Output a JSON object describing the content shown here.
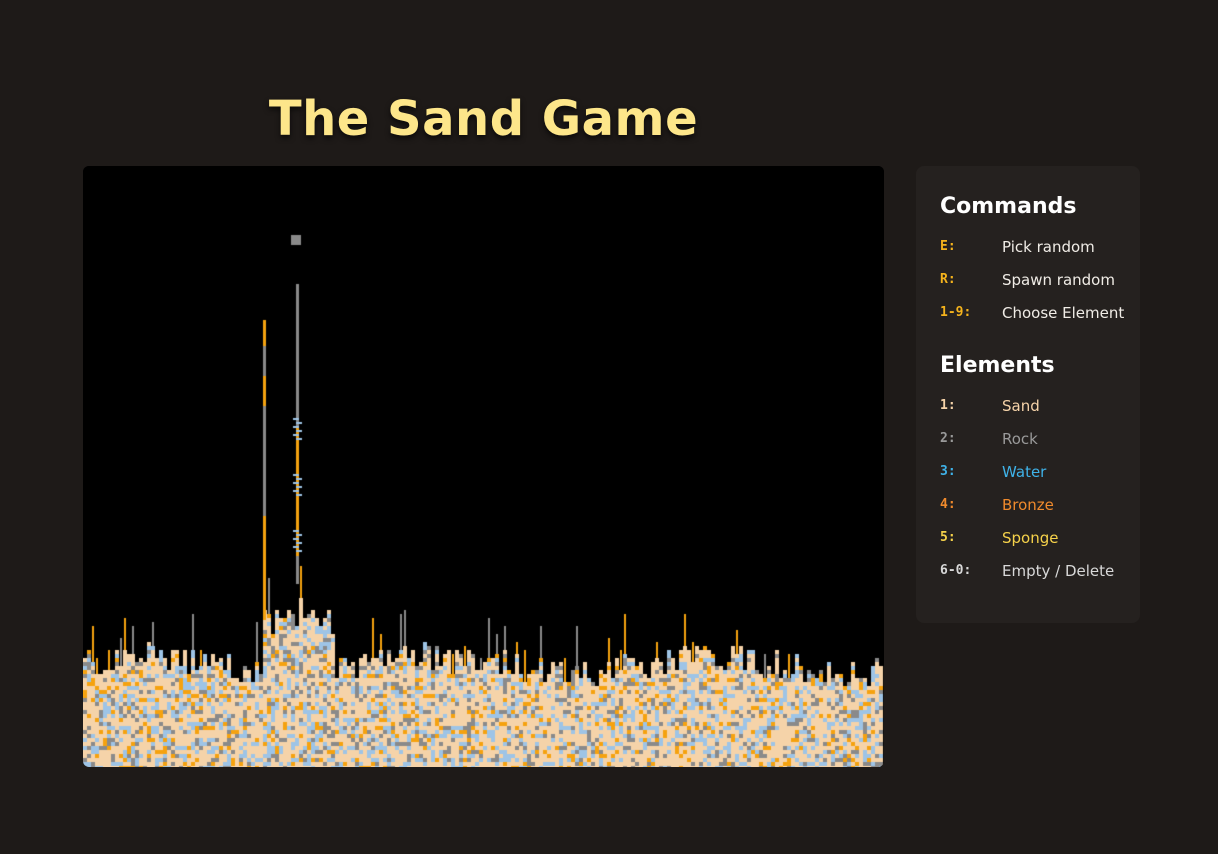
{
  "title": "The Sand Game",
  "commands": {
    "heading": "Commands",
    "items": [
      {
        "key": "E:",
        "label": "Pick random"
      },
      {
        "key": "R:",
        "label": "Spawn random"
      },
      {
        "key": "1-9:",
        "label": "Choose Element"
      }
    ]
  },
  "elements": {
    "heading": "Elements",
    "items": [
      {
        "key": "1:",
        "label": "Sand",
        "color": "#f5d3a9"
      },
      {
        "key": "2:",
        "label": "Rock",
        "color": "#9a9a9a"
      },
      {
        "key": "3:",
        "label": "Water",
        "color": "#3fb2e8"
      },
      {
        "key": "4:",
        "label": "Bronze",
        "color": "#f08a2c"
      },
      {
        "key": "5:",
        "label": "Sponge",
        "color": "#f6d24a"
      },
      {
        "key": "6-0:",
        "label": "Empty / Delete",
        "color": "#d8d8d8"
      }
    ]
  },
  "colors": {
    "title": "#fde68a",
    "command_key": "#f5b31c",
    "panel_bg": "#25211f",
    "page_bg": "#1e1a18",
    "canvas_bg": "#000000",
    "cell_sand": "#f5d3a9",
    "cell_rock": "#8a8a8a",
    "cell_water": "#9ec4e6",
    "cell_bronze": "#f5a20f"
  }
}
